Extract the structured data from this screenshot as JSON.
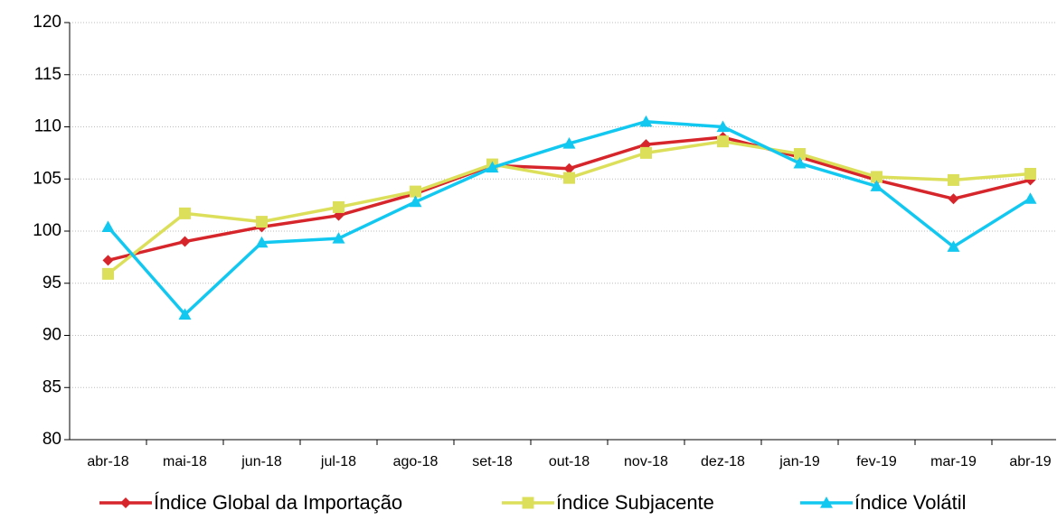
{
  "chart_data": {
    "type": "line",
    "categories": [
      "abr-18",
      "mai-18",
      "jun-18",
      "jul-18",
      "ago-18",
      "set-18",
      "out-18",
      "nov-18",
      "dez-18",
      "jan-19",
      "fev-19",
      "mar-19",
      "abr-19"
    ],
    "series": [
      {
        "name": "Índice Global da Importação",
        "color": "#d7262b",
        "marker": "diamond",
        "values": [
          97.2,
          99.0,
          100.4,
          101.5,
          103.6,
          106.3,
          106.0,
          108.3,
          109.0,
          107.1,
          104.9,
          103.1,
          104.9
        ]
      },
      {
        "name": "índice Subjacente",
        "color": "#dcdf5a",
        "marker": "square",
        "values": [
          95.9,
          101.7,
          100.9,
          102.3,
          103.8,
          106.4,
          105.1,
          107.5,
          108.6,
          107.4,
          105.2,
          104.9,
          105.5
        ]
      },
      {
        "name": "índice Volátil",
        "color": "#13c8f0",
        "marker": "triangle",
        "values": [
          100.4,
          92.0,
          98.9,
          99.3,
          102.8,
          106.1,
          108.4,
          110.5,
          110.0,
          106.5,
          104.3,
          98.5,
          103.1
        ]
      }
    ],
    "ylim": [
      80,
      120
    ],
    "yticks": [
      80,
      85,
      90,
      95,
      100,
      105,
      110,
      115,
      120
    ],
    "grid": true,
    "legend": "bottom"
  }
}
